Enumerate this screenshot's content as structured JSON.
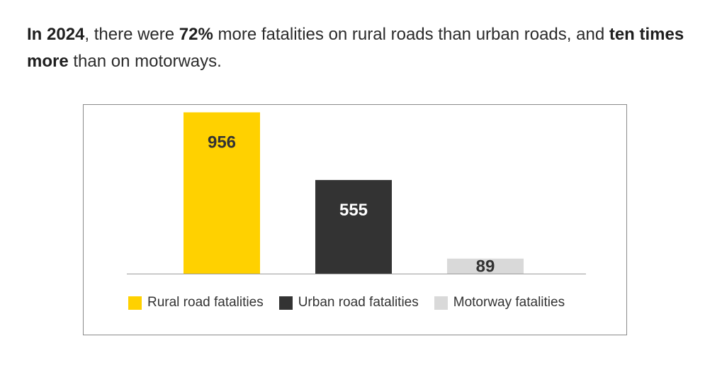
{
  "headline": {
    "part1_bold": "In 2024",
    "part2": ", there were ",
    "part3_bold": "72%",
    "part4": " more fatalities on rural roads than urban roads, and ",
    "part5_bold": "ten times more",
    "part6": " than on motorways."
  },
  "chart_data": {
    "type": "bar",
    "categories": [
      "Rural road fatalities",
      "Urban road fatalities",
      "Motorway fatalities"
    ],
    "values": [
      956,
      555,
      89
    ],
    "data_labels": [
      "956",
      "555",
      "89"
    ],
    "colors": [
      "#FFD100",
      "#333333",
      "#D9D9D9"
    ],
    "label_colors": [
      "#333333",
      "#ffffff",
      "#333333"
    ],
    "ylim": [
      0,
      1000
    ],
    "grid": false,
    "legend": {
      "placement": "bottom",
      "entries": [
        "Rural road fatalities",
        "Urban road fatalities",
        "Motorway fatalities"
      ]
    }
  }
}
